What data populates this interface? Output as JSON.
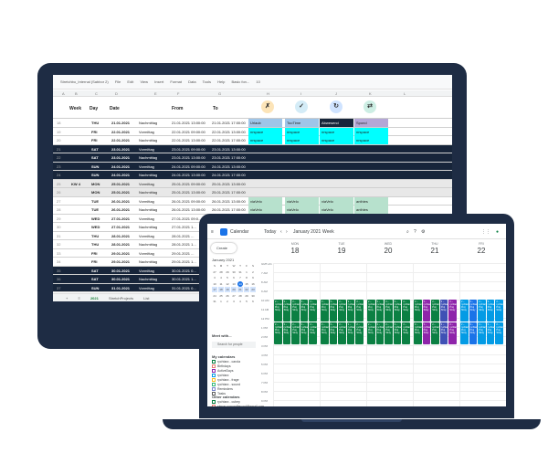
{
  "colors": {
    "device": "#1e2c44",
    "dark_row": "#17253a",
    "cyan": "#00ffff",
    "green_cell": "#b7e1cd",
    "sel_blue": "#9fc5e8",
    "cal_green": "#0b8043",
    "cal_purple": "#8e24aa",
    "cal_blue": "#1a73e8",
    "cal_lightblue": "#039be5"
  },
  "sheet": {
    "filename": "Stretchbo_Internal (Sabbor 2)",
    "menu": [
      "File",
      "Edit",
      "View",
      "Insert",
      "Format",
      "Data",
      "Tools",
      "Help"
    ],
    "font_name": "Basic fon...",
    "font_size": "10",
    "col_letters": [
      "A",
      "B",
      "C",
      "D",
      "E",
      "F",
      "G",
      "H",
      "I",
      "J",
      "K",
      "L"
    ],
    "headers": {
      "week": "Week",
      "day": "Day",
      "date": "Date",
      "from": "From",
      "to": "To"
    },
    "status_icons": [
      "check-cross-icon",
      "checkmark-icon",
      "circle-arrow-icon",
      "swap-icon"
    ],
    "rows": [
      {
        "n": "18",
        "style": "",
        "week": "",
        "day": "THU",
        "date": "21.01.2021",
        "slot": "Nachmittag",
        "from": "21.01.2021 13:00:00",
        "to": "21.01.2021 17:00:00",
        "g": "Urlaub",
        "h": "TooTime",
        "i": "Abwesend",
        "j": "Spond"
      },
      {
        "n": "19",
        "style": "",
        "week": "",
        "day": "FRI",
        "date": "22.01.2021",
        "slot": "Vormittag",
        "from": "22.01.2021 09:00:00",
        "to": "22.01.2021 13:00:00",
        "g": "nrspace",
        "h": "nrspace",
        "i": "nrspace",
        "j": "nrspace"
      },
      {
        "n": "20",
        "style": "",
        "week": "",
        "day": "FRI",
        "date": "22.01.2021",
        "slot": "Nachmittag",
        "from": "22.01.2021 13:00:00",
        "to": "22.01.2021 17:00:00",
        "g": "nrspace",
        "h": "nrspace",
        "i": "nrspace",
        "j": "nrspace"
      },
      {
        "n": "21",
        "style": "dark",
        "week": "",
        "day": "SAT",
        "date": "23.01.2021",
        "slot": "Vormittag",
        "from": "23.01.2021 09:00:00",
        "to": "23.01.2021 13:00:00",
        "g": "",
        "h": "",
        "i": "",
        "j": ""
      },
      {
        "n": "22",
        "style": "dark",
        "week": "",
        "day": "SAT",
        "date": "23.01.2021",
        "slot": "Nachmittag",
        "from": "23.01.2021 13:00:00",
        "to": "23.01.2021 17:00:00",
        "g": "",
        "h": "",
        "i": "",
        "j": ""
      },
      {
        "n": "23",
        "style": "dark",
        "week": "",
        "day": "SUN",
        "date": "24.01.2021",
        "slot": "Vormittag",
        "from": "24.01.2021 09:00:00",
        "to": "24.01.2021 13:00:00",
        "g": "",
        "h": "",
        "i": "",
        "j": ""
      },
      {
        "n": "24",
        "style": "dark",
        "week": "",
        "day": "SUN",
        "date": "24.01.2021",
        "slot": "Nachmittag",
        "from": "24.01.2021 13:00:00",
        "to": "24.01.2021 17:00:00",
        "g": "",
        "h": "",
        "i": "",
        "j": ""
      },
      {
        "n": "25",
        "style": "gray",
        "week": "KW 4",
        "day": "MON",
        "date": "25.01.2021",
        "slot": "Vormittag",
        "from": "25.01.2021 09:00:00",
        "to": "25.01.2021 13:00:00",
        "g": "",
        "h": "",
        "i": "",
        "j": ""
      },
      {
        "n": "26",
        "style": "gray",
        "week": "",
        "day": "MON",
        "date": "25.01.2021",
        "slot": "Nachmittag",
        "from": "25.01.2021 13:00:00",
        "to": "25.01.2021 17:00:00",
        "g": "",
        "h": "",
        "i": "",
        "j": ""
      },
      {
        "n": "27",
        "style": "",
        "week": "",
        "day": "TUE",
        "date": "26.01.2021",
        "slot": "Vormittag",
        "from": "26.01.2021 09:00:00",
        "to": "26.01.2021 13:00:00",
        "g": "viaVelo",
        "h": "viaVelo",
        "i": "viaVelo",
        "j": "anthies"
      },
      {
        "n": "28",
        "style": "",
        "week": "",
        "day": "TUE",
        "date": "26.01.2021",
        "slot": "Nachmittag",
        "from": "26.01.2021 13:00:00",
        "to": "26.01.2021 17:00:00",
        "g": "viaVelo",
        "h": "viaVelo",
        "i": "viaVelo",
        "j": "anthies"
      },
      {
        "n": "29",
        "style": "",
        "week": "",
        "day": "WED",
        "date": "27.01.2021",
        "slot": "Vormittag",
        "from": "27.01.2021 09:0...",
        "to": "",
        "g": "",
        "h": "",
        "i": "",
        "j": ""
      },
      {
        "n": "30",
        "style": "",
        "week": "",
        "day": "WED",
        "date": "27.01.2021",
        "slot": "Nachmittag",
        "from": "27.01.2021 1...",
        "to": "",
        "g": "",
        "h": "",
        "i": "",
        "j": ""
      },
      {
        "n": "31",
        "style": "",
        "week": "",
        "day": "THU",
        "date": "28.01.2021",
        "slot": "Vormittag",
        "from": "28.01.2021 ...",
        "to": "",
        "g": "",
        "h": "",
        "i": "",
        "j": ""
      },
      {
        "n": "32",
        "style": "",
        "week": "",
        "day": "THU",
        "date": "28.01.2021",
        "slot": "Nachmittag",
        "from": "28.01.2021 1...",
        "to": "",
        "g": "",
        "h": "",
        "i": "",
        "j": ""
      },
      {
        "n": "33",
        "style": "",
        "week": "",
        "day": "FRI",
        "date": "29.01.2021",
        "slot": "Vormittag",
        "from": "29.01.2021 ...",
        "to": "",
        "g": "",
        "h": "",
        "i": "",
        "j": ""
      },
      {
        "n": "34",
        "style": "",
        "week": "",
        "day": "FRI",
        "date": "29.01.2021",
        "slot": "Nachmittag",
        "from": "29.01.2021 1...",
        "to": "",
        "g": "",
        "h": "",
        "i": "",
        "j": ""
      },
      {
        "n": "35",
        "style": "dark",
        "week": "",
        "day": "SAT",
        "date": "30.01.2021",
        "slot": "Vormittag",
        "from": "30.01.2021 0...",
        "to": "",
        "g": "",
        "h": "",
        "i": "",
        "j": ""
      },
      {
        "n": "36",
        "style": "dark",
        "week": "",
        "day": "SAT",
        "date": "30.01.2021",
        "slot": "Nachmittag",
        "from": "30.01.2021 1...",
        "to": "",
        "g": "",
        "h": "",
        "i": "",
        "j": ""
      },
      {
        "n": "37",
        "style": "dark",
        "week": "",
        "day": "SUN",
        "date": "31.01.2021",
        "slot": "Vormittag",
        "from": "31.01.2021 0...",
        "to": "",
        "g": "",
        "h": "",
        "i": "",
        "j": ""
      }
    ],
    "tabs": [
      "+",
      "≡",
      "2021",
      "StretchProjects",
      "List"
    ]
  },
  "calendar": {
    "app_name": "Calendar",
    "today_btn": "Today",
    "month_label": "January 2021",
    "view_btn": "Week",
    "create_btn": "Create",
    "mini_month": "January 2021",
    "mini_days": [
      "S",
      "M",
      "T",
      "W",
      "T",
      "F",
      "S",
      "27",
      "28",
      "29",
      "30",
      "31",
      "1",
      "2",
      "3",
      "4",
      "5",
      "6",
      "7",
      "8",
      "9",
      "10",
      "11",
      "12",
      "13",
      "14",
      "15",
      "16",
      "17",
      "18",
      "19",
      "20",
      "21",
      "22",
      "23",
      "24",
      "25",
      "26",
      "27",
      "28",
      "29",
      "30",
      "31",
      "1",
      "2",
      "3",
      "4",
      "5",
      "6"
    ],
    "mini_today_index": 25,
    "meet_with": "Meet with...",
    "search_people": "Search for people",
    "my_calendars": "My calendars",
    "my_calendar_items": [
      "rychtarz - carola",
      "Birthdays",
      "ActiveDays",
      "rychtarz",
      "rychtarz - frage",
      "rychtarz - sound",
      "Reminders",
      "Tasks"
    ],
    "other_calendars": "Other calendars",
    "other_items": [
      "rychtarz - cubey",
      "simon.vonundfreund@gmail.com"
    ],
    "days": [
      {
        "dow": "MON",
        "num": "18"
      },
      {
        "dow": "TUE",
        "num": "19"
      },
      {
        "dow": "WED",
        "num": "20"
      },
      {
        "dow": "THU",
        "num": "21"
      },
      {
        "dow": "FRI",
        "num": "22"
      }
    ],
    "times": [
      "GMT+01",
      "7 AM",
      "8 AM",
      "9 AM",
      "10 AM",
      "11 AM",
      "12 PM",
      "1 PM",
      "2 PM",
      "3 PM",
      "4 PM",
      "5 PM",
      "6 PM",
      "7 PM",
      "8 PM",
      "9 PM"
    ],
    "event_label": "2 – rychtarz Proj Stray"
  }
}
